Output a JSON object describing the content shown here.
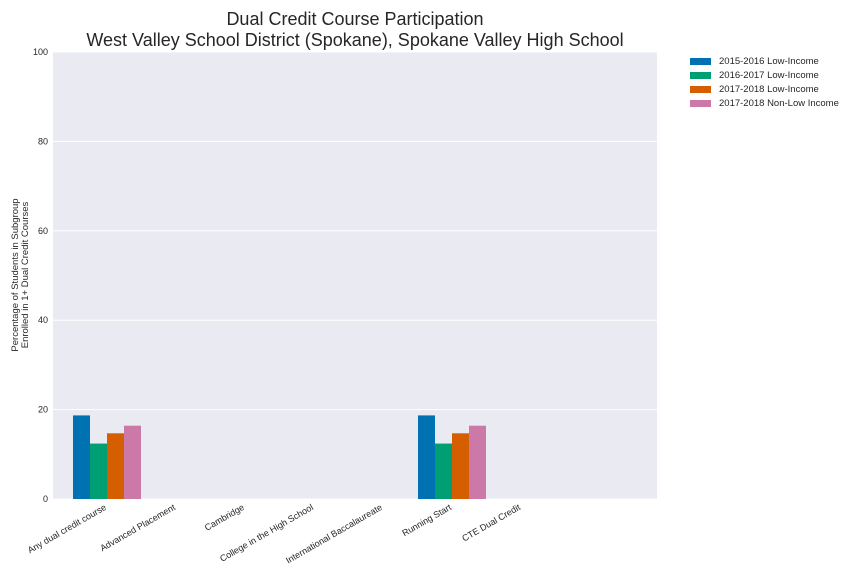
{
  "chart_data": {
    "type": "bar",
    "title": [
      "Dual Credit Course Participation",
      "West Valley School District (Spokane), Spokane Valley High School"
    ],
    "xlabel": "",
    "ylabel": [
      "Percentage of Students in Subgroup",
      "Enrolled in 1+ Dual Credit Courses"
    ],
    "ylim": [
      0,
      100
    ],
    "yticks": [
      0,
      20,
      40,
      60,
      80,
      100
    ],
    "grid": true,
    "legend_position": "outside top-right",
    "categories": [
      "Any dual credit course",
      "Advanced Placement",
      "Cambridge",
      "College in the High School",
      "International Baccalaureate",
      "Running Start",
      "CTE Dual Credit"
    ],
    "series": [
      {
        "name": "2015-2016 Low-Income",
        "color": "#0072b2",
        "values": [
          18.7,
          0,
          0,
          0,
          0,
          18.7,
          0
        ]
      },
      {
        "name": "2016-2017 Low-Income",
        "color": "#009e73",
        "values": [
          12.4,
          0,
          0,
          0,
          0,
          12.4,
          0
        ]
      },
      {
        "name": "2017-2018 Low-Income",
        "color": "#d55e00",
        "values": [
          14.7,
          0,
          0,
          0,
          0,
          14.7,
          0
        ]
      },
      {
        "name": "2017-2018 Non-Low Income",
        "color": "#cc79a7",
        "values": [
          16.4,
          0,
          0,
          0,
          0,
          16.4,
          0
        ]
      }
    ]
  },
  "colors": {
    "plot_background": "#eaeaf2",
    "gridline": "#ffffff"
  }
}
